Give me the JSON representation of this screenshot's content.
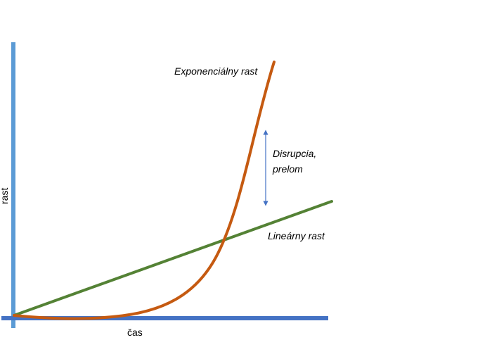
{
  "axes": {
    "y_label": "rast",
    "x_label": "čas",
    "y_axis_color": "#5B9BD5",
    "x_axis_color": "#4472C4"
  },
  "curves": {
    "exponential": {
      "label": "Exponenciálny rast",
      "color": "#C55A11"
    },
    "linear": {
      "label": "Lineárny rast",
      "color": "#548235"
    }
  },
  "annotation": {
    "line1": "Disrupcia,",
    "line2": "prelom",
    "arrow_color": "#4472C4"
  }
}
